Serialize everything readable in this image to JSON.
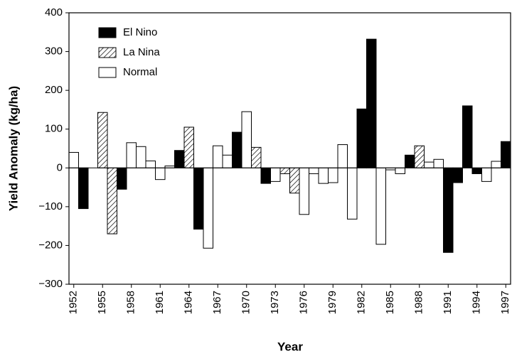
{
  "chart_data": {
    "type": "bar",
    "x_label": "Year",
    "y_label": "Yield Anomaly (kg/ha)",
    "categories": [
      "1952",
      null,
      null,
      "1955",
      null,
      null,
      "1958",
      null,
      null,
      "1961",
      null,
      null,
      "1964",
      null,
      null,
      "1967",
      null,
      null,
      "1970",
      null,
      null,
      "1973",
      null,
      null,
      "1976",
      null,
      null,
      "1979",
      null,
      null,
      "1982",
      null,
      null,
      "1985",
      null,
      null,
      "1988",
      null,
      null,
      "1991",
      null,
      null,
      "1994",
      null,
      null,
      "1997"
    ],
    "series": [
      {
        "name": "El Nino",
        "color": "#000000",
        "pattern": "solid",
        "values": [
          null,
          -105,
          null,
          null,
          null,
          -55,
          null,
          null,
          null,
          null,
          null,
          45,
          null,
          -158,
          null,
          null,
          null,
          92,
          null,
          null,
          -40,
          null,
          null,
          null,
          null,
          null,
          null,
          null,
          null,
          null,
          152,
          332,
          null,
          null,
          null,
          33,
          null,
          null,
          null,
          -218,
          -38,
          160,
          -15,
          null,
          null,
          68
        ]
      },
      {
        "name": "La Nina",
        "color": "#000000",
        "pattern": "hatch",
        "values": [
          null,
          null,
          null,
          143,
          -170,
          null,
          null,
          null,
          null,
          null,
          null,
          null,
          105,
          null,
          null,
          null,
          null,
          null,
          null,
          53,
          null,
          null,
          -15,
          -65,
          null,
          null,
          null,
          null,
          null,
          null,
          null,
          null,
          null,
          null,
          null,
          null,
          57,
          null,
          null,
          null,
          null,
          null,
          null,
          null,
          null,
          null
        ]
      },
      {
        "name": "Normal",
        "color": "#ffffff",
        "pattern": "solid",
        "values": [
          40,
          null,
          null,
          null,
          null,
          null,
          65,
          55,
          18,
          -30,
          5,
          null,
          null,
          null,
          -207,
          57,
          33,
          null,
          145,
          null,
          null,
          -35,
          null,
          null,
          -120,
          -15,
          -40,
          -38,
          60,
          -132,
          null,
          null,
          -197,
          -5,
          -15,
          null,
          null,
          15,
          22,
          null,
          null,
          null,
          null,
          -35,
          17,
          null
        ]
      }
    ],
    "ylim": [
      -300,
      400
    ],
    "yticks": [
      {
        "value": -300,
        "label": "−300"
      },
      {
        "value": -200,
        "label": "−200"
      },
      {
        "value": -100,
        "label": "−100"
      },
      0,
      100,
      200,
      300,
      400
    ],
    "grid": false,
    "legend": "top-left"
  }
}
